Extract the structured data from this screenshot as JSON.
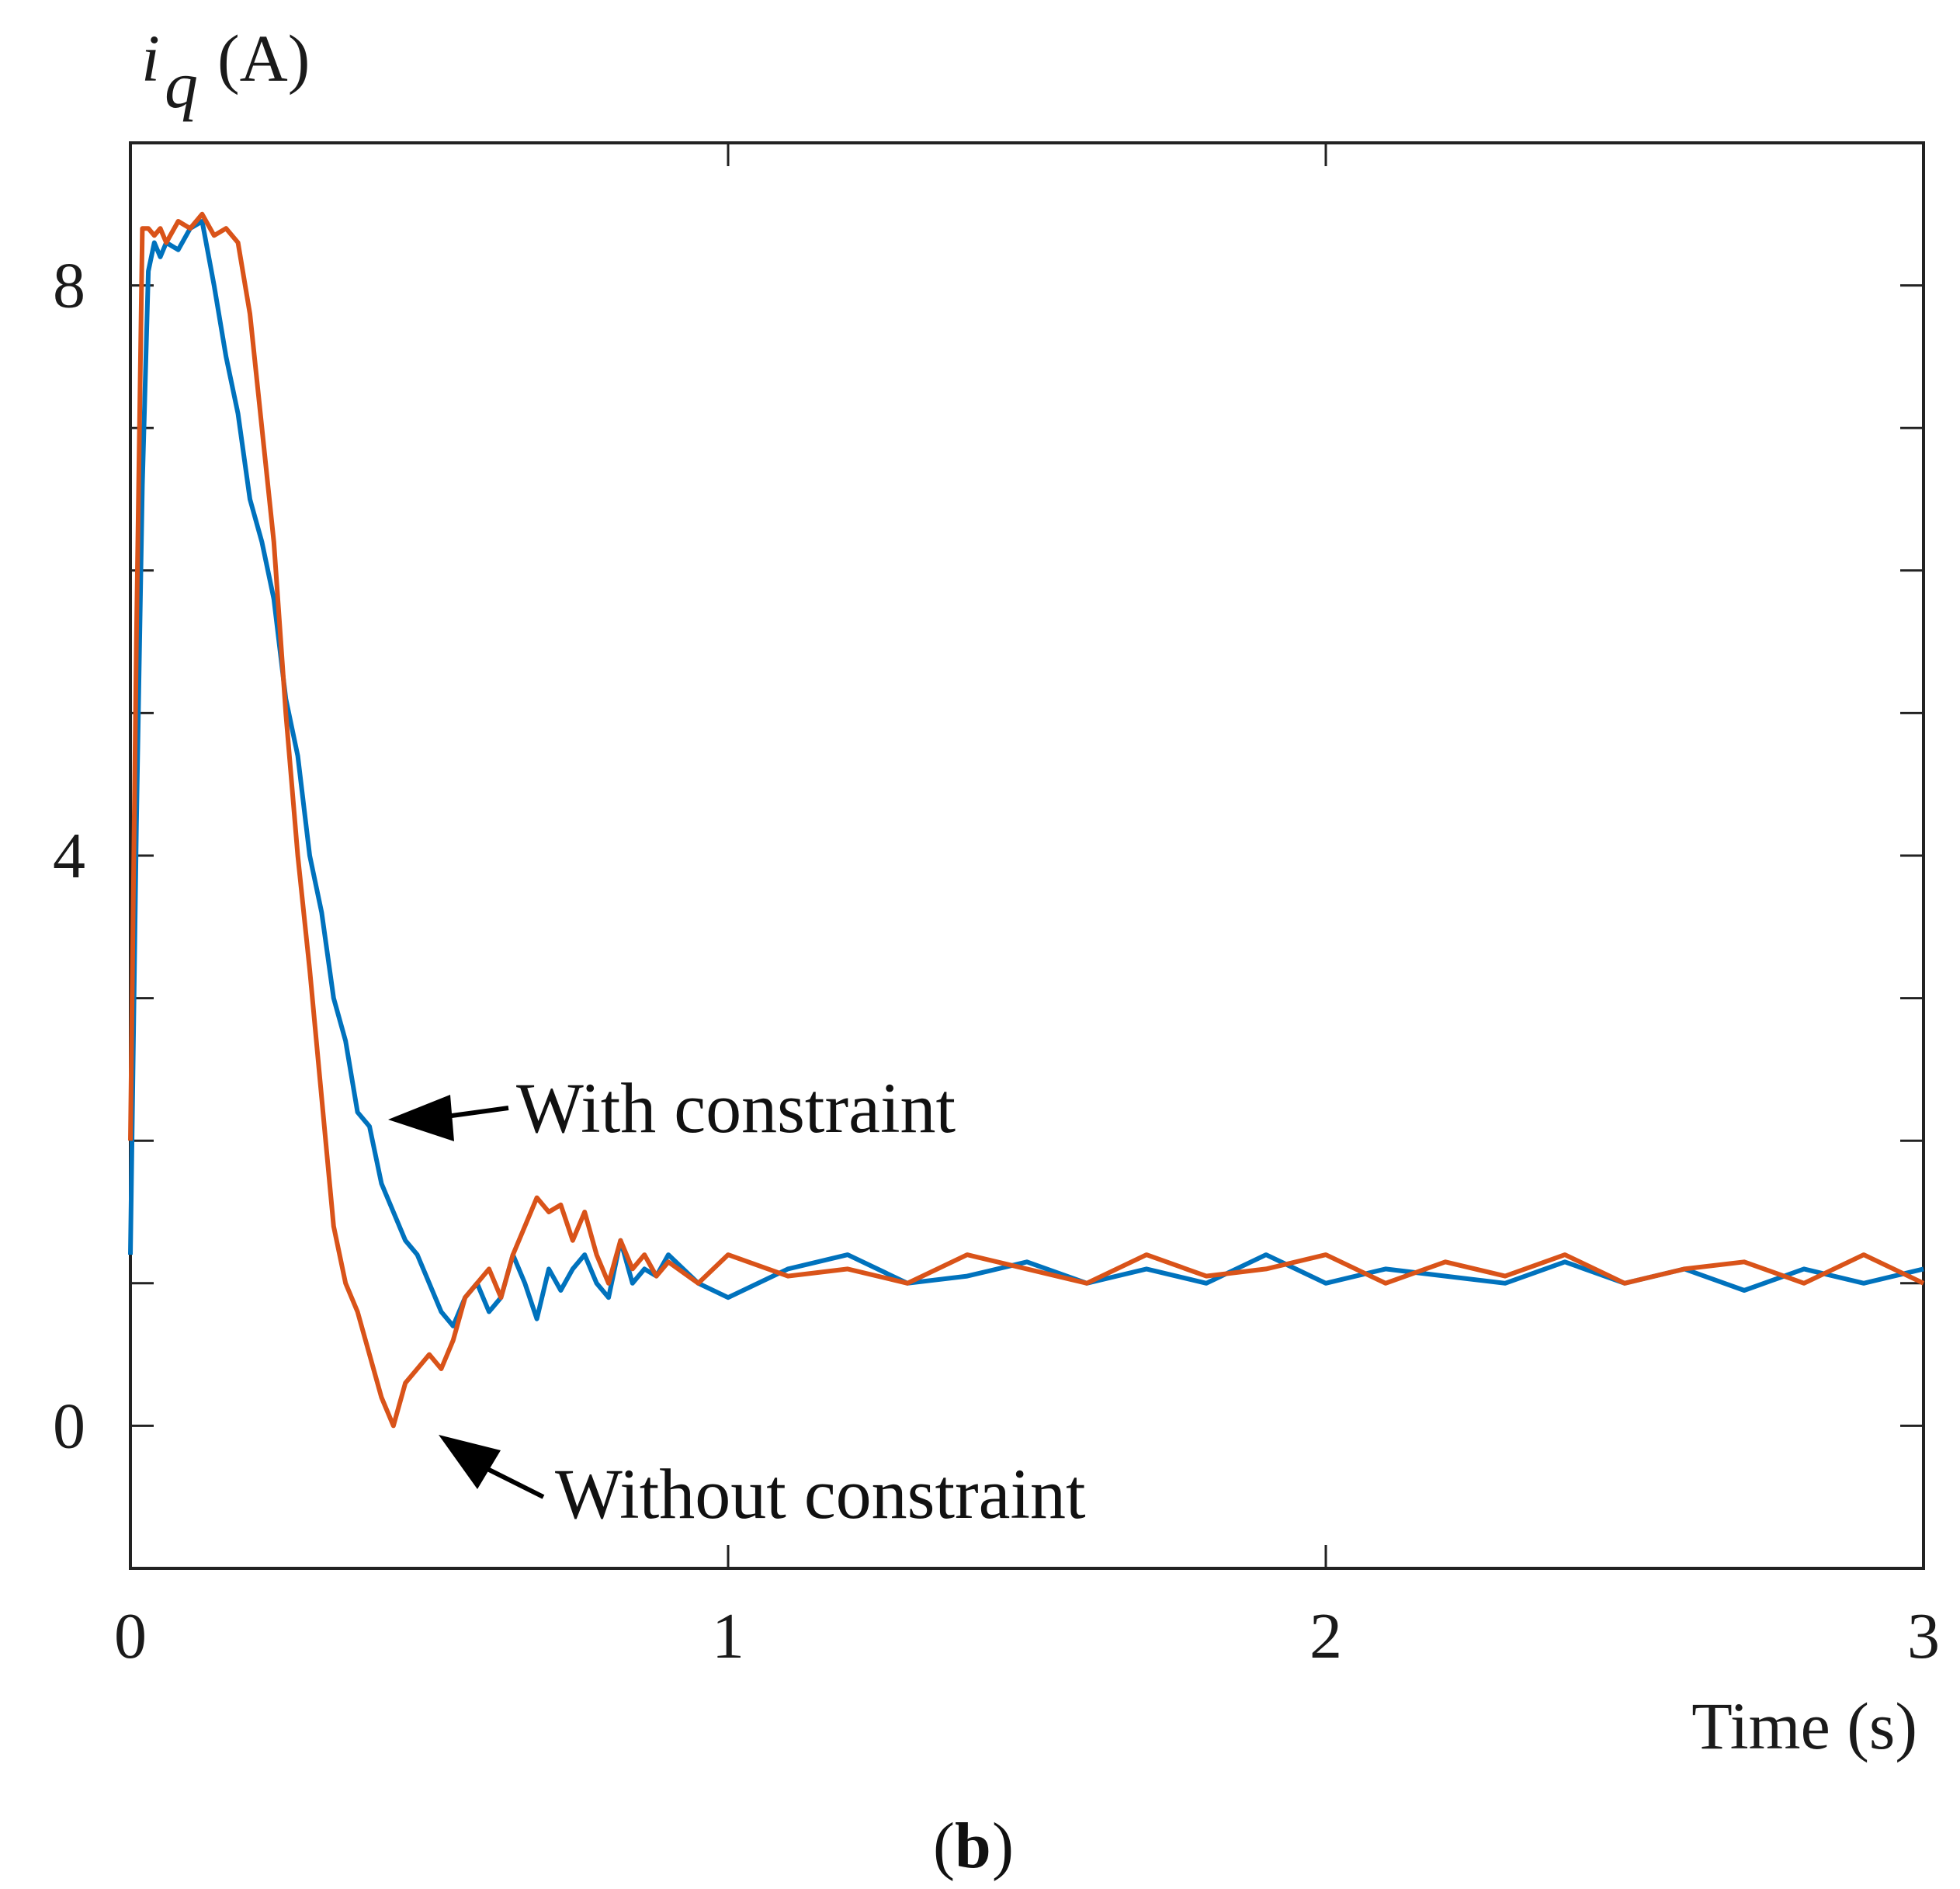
{
  "colors": {
    "with_constraint": "#0072BD",
    "without_constraint": "#D95319",
    "axis": "#222222",
    "arrow": "#000000"
  },
  "chart_data": {
    "type": "line",
    "title": "",
    "xlabel": "Time (s)",
    "ylabel_symbol": "i",
    "ylabel_subscript": "q",
    "ylabel_unit": "(A)",
    "panel_label": "b",
    "xlim": [
      0,
      3
    ],
    "ylim": [
      -1,
      9
    ],
    "xticks": [
      0,
      1,
      2,
      3
    ],
    "xtick_labels": [
      "0",
      "1",
      "2",
      "3"
    ],
    "yticks": [
      0,
      4,
      8
    ],
    "ytick_labels": [
      "0",
      "4",
      "8"
    ],
    "minor_ytick_step": 1,
    "grid": false,
    "series": [
      {
        "name": "With constraint",
        "color_key": "with_constraint",
        "x": [
          0,
          0.01,
          0.02,
          0.03,
          0.04,
          0.05,
          0.06,
          0.08,
          0.1,
          0.12,
          0.14,
          0.16,
          0.18,
          0.2,
          0.22,
          0.24,
          0.26,
          0.28,
          0.3,
          0.32,
          0.34,
          0.36,
          0.38,
          0.4,
          0.42,
          0.44,
          0.46,
          0.48,
          0.5,
          0.52,
          0.54,
          0.56,
          0.58,
          0.6,
          0.62,
          0.64,
          0.66,
          0.68,
          0.7,
          0.72,
          0.74,
          0.76,
          0.78,
          0.8,
          0.82,
          0.84,
          0.86,
          0.88,
          0.9,
          0.95,
          1.0,
          1.1,
          1.2,
          1.3,
          1.4,
          1.5,
          1.6,
          1.7,
          1.8,
          1.9,
          2.0,
          2.1,
          2.2,
          2.3,
          2.4,
          2.5,
          2.6,
          2.7,
          2.8,
          2.9,
          3.0
        ],
        "y": [
          1.2,
          4.2,
          6.6,
          8.1,
          8.3,
          8.2,
          8.3,
          8.25,
          8.4,
          8.45,
          8.0,
          7.5,
          7.1,
          6.5,
          6.2,
          5.8,
          5.1,
          4.7,
          4.0,
          3.6,
          3.0,
          2.7,
          2.2,
          2.1,
          1.7,
          1.5,
          1.3,
          1.2,
          1.0,
          0.8,
          0.7,
          0.9,
          1.0,
          0.8,
          0.9,
          1.2,
          1.0,
          0.75,
          1.1,
          0.95,
          1.1,
          1.2,
          1.0,
          0.9,
          1.3,
          1.0,
          1.1,
          1.05,
          1.2,
          1.0,
          0.9,
          1.1,
          1.2,
          1.0,
          1.05,
          1.15,
          1.0,
          1.1,
          1.0,
          1.2,
          1.0,
          1.1,
          1.05,
          1.0,
          1.15,
          1.0,
          1.1,
          0.95,
          1.1,
          1.0,
          1.1
        ]
      },
      {
        "name": "Without constraint",
        "color_key": "without_constraint",
        "x": [
          0,
          0.01,
          0.02,
          0.03,
          0.04,
          0.05,
          0.06,
          0.08,
          0.1,
          0.12,
          0.14,
          0.16,
          0.18,
          0.2,
          0.22,
          0.24,
          0.26,
          0.28,
          0.3,
          0.32,
          0.34,
          0.36,
          0.38,
          0.4,
          0.42,
          0.44,
          0.46,
          0.48,
          0.5,
          0.52,
          0.54,
          0.56,
          0.58,
          0.6,
          0.62,
          0.64,
          0.66,
          0.68,
          0.7,
          0.72,
          0.74,
          0.76,
          0.78,
          0.8,
          0.82,
          0.84,
          0.86,
          0.88,
          0.9,
          0.95,
          1.0,
          1.1,
          1.2,
          1.3,
          1.4,
          1.5,
          1.6,
          1.7,
          1.8,
          1.9,
          2.0,
          2.1,
          2.2,
          2.3,
          2.4,
          2.5,
          2.6,
          2.7,
          2.8,
          2.9,
          3.0
        ],
        "y": [
          2.0,
          5.5,
          8.4,
          8.4,
          8.35,
          8.4,
          8.3,
          8.45,
          8.4,
          8.5,
          8.35,
          8.4,
          8.3,
          7.8,
          7.0,
          6.2,
          5.0,
          4.0,
          3.2,
          2.3,
          1.4,
          1.0,
          0.8,
          0.5,
          0.2,
          0.0,
          0.3,
          0.4,
          0.5,
          0.4,
          0.6,
          0.9,
          1.0,
          1.1,
          0.9,
          1.2,
          1.4,
          1.6,
          1.5,
          1.55,
          1.3,
          1.5,
          1.2,
          1.0,
          1.3,
          1.1,
          1.2,
          1.05,
          1.15,
          1.0,
          1.2,
          1.05,
          1.1,
          1.0,
          1.2,
          1.1,
          1.0,
          1.2,
          1.05,
          1.1,
          1.2,
          1.0,
          1.15,
          1.05,
          1.2,
          1.0,
          1.1,
          1.15,
          1.0,
          1.2,
          1.0
        ]
      }
    ],
    "annotations": [
      {
        "text": "With constraint",
        "points_to": {
          "x": 0.43,
          "y": 2.1
        }
      },
      {
        "text": "Without constraint",
        "points_to": {
          "x": 0.5,
          "y": -0.05
        }
      }
    ]
  }
}
